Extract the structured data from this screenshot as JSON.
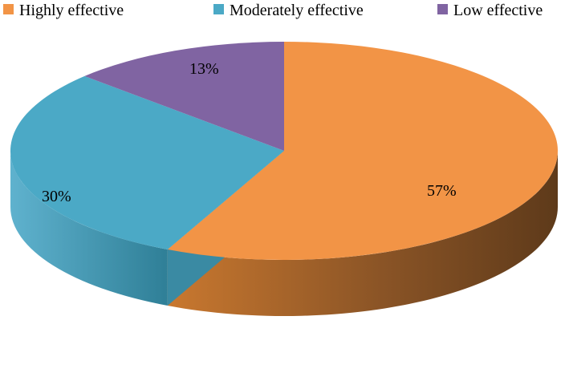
{
  "chart_data": {
    "type": "pie",
    "style": "3d",
    "title": "",
    "legend_position": "top",
    "categories": [
      "Highly effective",
      "Moderately effective",
      "Low effective"
    ],
    "values": [
      57,
      30,
      13
    ],
    "labels": [
      "57%",
      "30%",
      "13%"
    ],
    "colors": [
      "#F29446",
      "#4BA9C6",
      "#8064A2"
    ],
    "side_colors": [
      "#B7692B",
      "#3A8AA3",
      "#5E4A7A"
    ]
  }
}
